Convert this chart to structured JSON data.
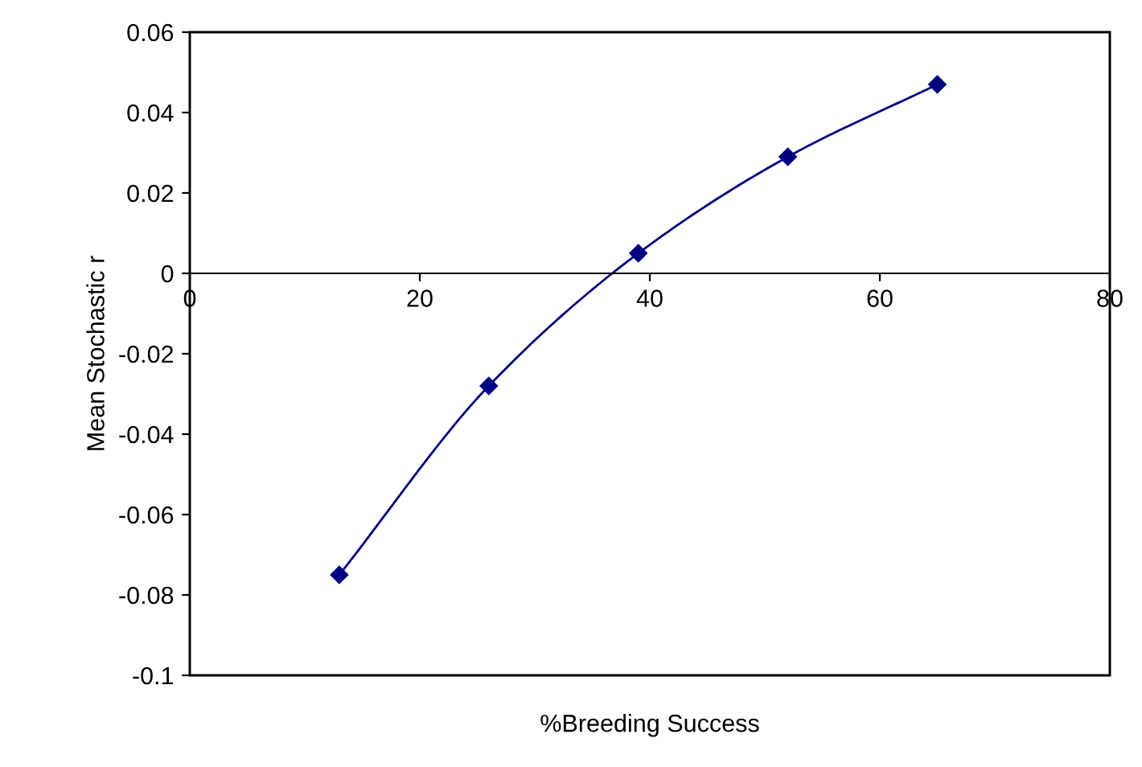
{
  "chart_data": {
    "type": "line",
    "xlabel": "%Breeding Success",
    "ylabel": "Mean Stochastic r",
    "x": [
      13,
      26,
      39,
      52,
      65
    ],
    "series": [
      {
        "color": "#000080",
        "values": [
          -0.075,
          -0.028,
          0.005,
          0.029,
          0.047
        ]
      }
    ],
    "xlim": [
      0,
      80
    ],
    "xticks": [
      0,
      20,
      40,
      60,
      80
    ],
    "ylim": [
      -0.1,
      0.06
    ],
    "yticks": [
      -0.1,
      -0.08,
      -0.06,
      -0.04,
      -0.02,
      0,
      0.02,
      0.04,
      0.06
    ],
    "marker": "diamond",
    "line_style": "solid",
    "grid": false,
    "legend": false
  }
}
